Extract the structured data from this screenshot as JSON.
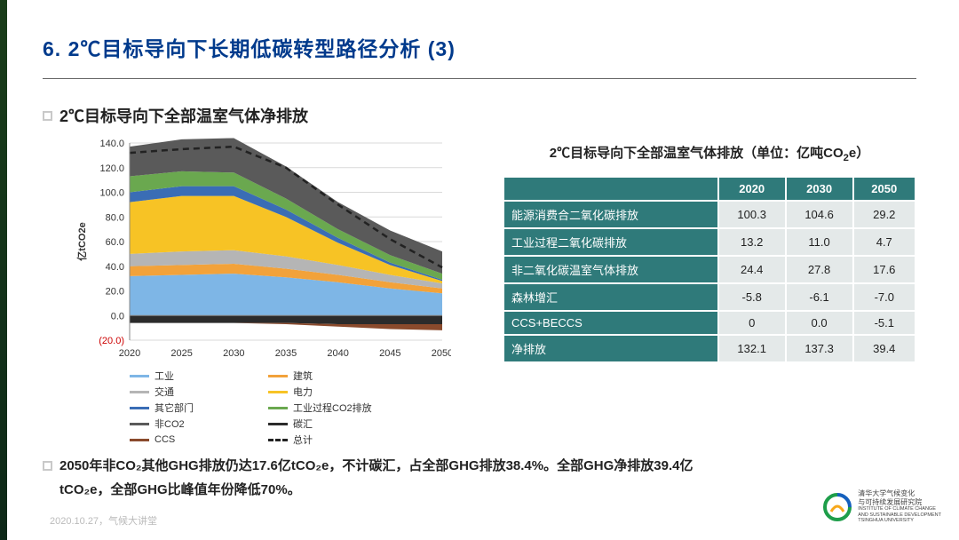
{
  "title": "6. 2℃目标导向下长期低碳转型路径分析 (3)",
  "subtitle": "2℃目标导向下全部温室气体净排放",
  "chart": {
    "type": "area",
    "x_labels": [
      "2020",
      "2025",
      "2030",
      "2035",
      "2040",
      "2045",
      "2050"
    ],
    "y_axis_label": "亿tCO2e",
    "y_ticks": [
      "(20.0)",
      "0.0",
      "20.0",
      "40.0",
      "60.0",
      "80.0",
      "100.0",
      "120.0",
      "140.0"
    ],
    "y_min": -20,
    "y_max": 140,
    "y_step": 20,
    "grid_color": "#d9d9d9",
    "background": "#ffffff",
    "neg_label_color": "#cc0000",
    "series": [
      {
        "name": "工业",
        "color": "#7eb6e6",
        "values": [
          32,
          33,
          34,
          31,
          27,
          22,
          18
        ]
      },
      {
        "name": "建筑",
        "color": "#f2a23a",
        "values": [
          8,
          8,
          8,
          7,
          6,
          5,
          4
        ]
      },
      {
        "name": "交通",
        "color": "#b5b5b5",
        "values": [
          10,
          11,
          11,
          10,
          8,
          6,
          4
        ]
      },
      {
        "name": "电力",
        "color": "#f7c325",
        "values": [
          42,
          45,
          44,
          32,
          18,
          8,
          2
        ]
      },
      {
        "name": "其它部门",
        "color": "#3a6db5",
        "values": [
          8,
          8,
          8,
          6,
          4,
          2,
          1
        ]
      },
      {
        "name": "工业过程CO2排放",
        "color": "#6aa84f",
        "values": [
          13,
          12,
          11,
          9,
          7,
          6,
          5
        ]
      },
      {
        "name": "非CO2",
        "color": "#5a5a5a",
        "values": [
          24,
          26,
          28,
          26,
          22,
          20,
          18
        ]
      },
      {
        "name": "碳汇",
        "color": "#2b2b2b",
        "values": [
          -6,
          -6,
          -6,
          -6,
          -7,
          -7,
          -7
        ]
      },
      {
        "name": "CCS",
        "color": "#8a4a2c",
        "values": [
          0,
          0,
          0,
          -1,
          -2,
          -4,
          -5
        ]
      }
    ],
    "total_line": {
      "name": "总计",
      "style": "dashed",
      "color": "#222222",
      "values": [
        132,
        135,
        137,
        120,
        90,
        62,
        39
      ]
    }
  },
  "legend_items": [
    [
      "工业",
      "#7eb6e6"
    ],
    [
      "建筑",
      "#f2a23a"
    ],
    [
      "交通",
      "#b5b5b5"
    ],
    [
      "电力",
      "#f7c325"
    ],
    [
      "其它部门",
      "#3a6db5"
    ],
    [
      "工业过程CO2排放",
      "#6aa84f"
    ],
    [
      "非CO2",
      "#5a5a5a"
    ],
    [
      "碳汇",
      "#2b2b2b"
    ],
    [
      "CCS",
      "#8a4a2c"
    ]
  ],
  "legend_total": "总计",
  "table": {
    "title_prefix": "2℃目标导向下全部温室气体排放（单位：亿吨CO",
    "title_suffix": "e）",
    "columns": [
      "",
      "2020",
      "2030",
      "2050"
    ],
    "rows": [
      [
        "能源消费合二氧化碳排放",
        "100.3",
        "104.6",
        "29.2"
      ],
      [
        "工业过程二氧化碳排放",
        "13.2",
        "11.0",
        "4.7"
      ],
      [
        "非二氧化碳温室气体排放",
        "24.4",
        "27.8",
        "17.6"
      ],
      [
        "森林增汇",
        "-5.8",
        "-6.1",
        "-7.0"
      ],
      [
        "CCS+BECCS",
        "0",
        "0.0",
        "-5.1"
      ],
      [
        "净排放",
        "132.1",
        "137.3",
        "39.4"
      ]
    ],
    "header_bg": "#2f7a7a",
    "cell_bg": "#e4e9e9"
  },
  "bottom_line1": "2050年非CO₂其他GHG排放仍达17.6亿tCO₂e，不计碳汇，占全部GHG排放38.4%。全部GHG净排放39.4亿",
  "bottom_line2": "tCO₂e，全部GHG比峰值年份降低70%。",
  "footer_date": "2020.10.27，气候大讲堂",
  "logo": {
    "line1": "清华大学气候变化",
    "line2": "与可持续发展研究院",
    "line3": "INSTITUTE OF CLIMATE CHANGE",
    "line4": "AND SUSTAINABLE DEVELOPMENT",
    "line5": "TSINGHUA UNIVERSITY"
  }
}
